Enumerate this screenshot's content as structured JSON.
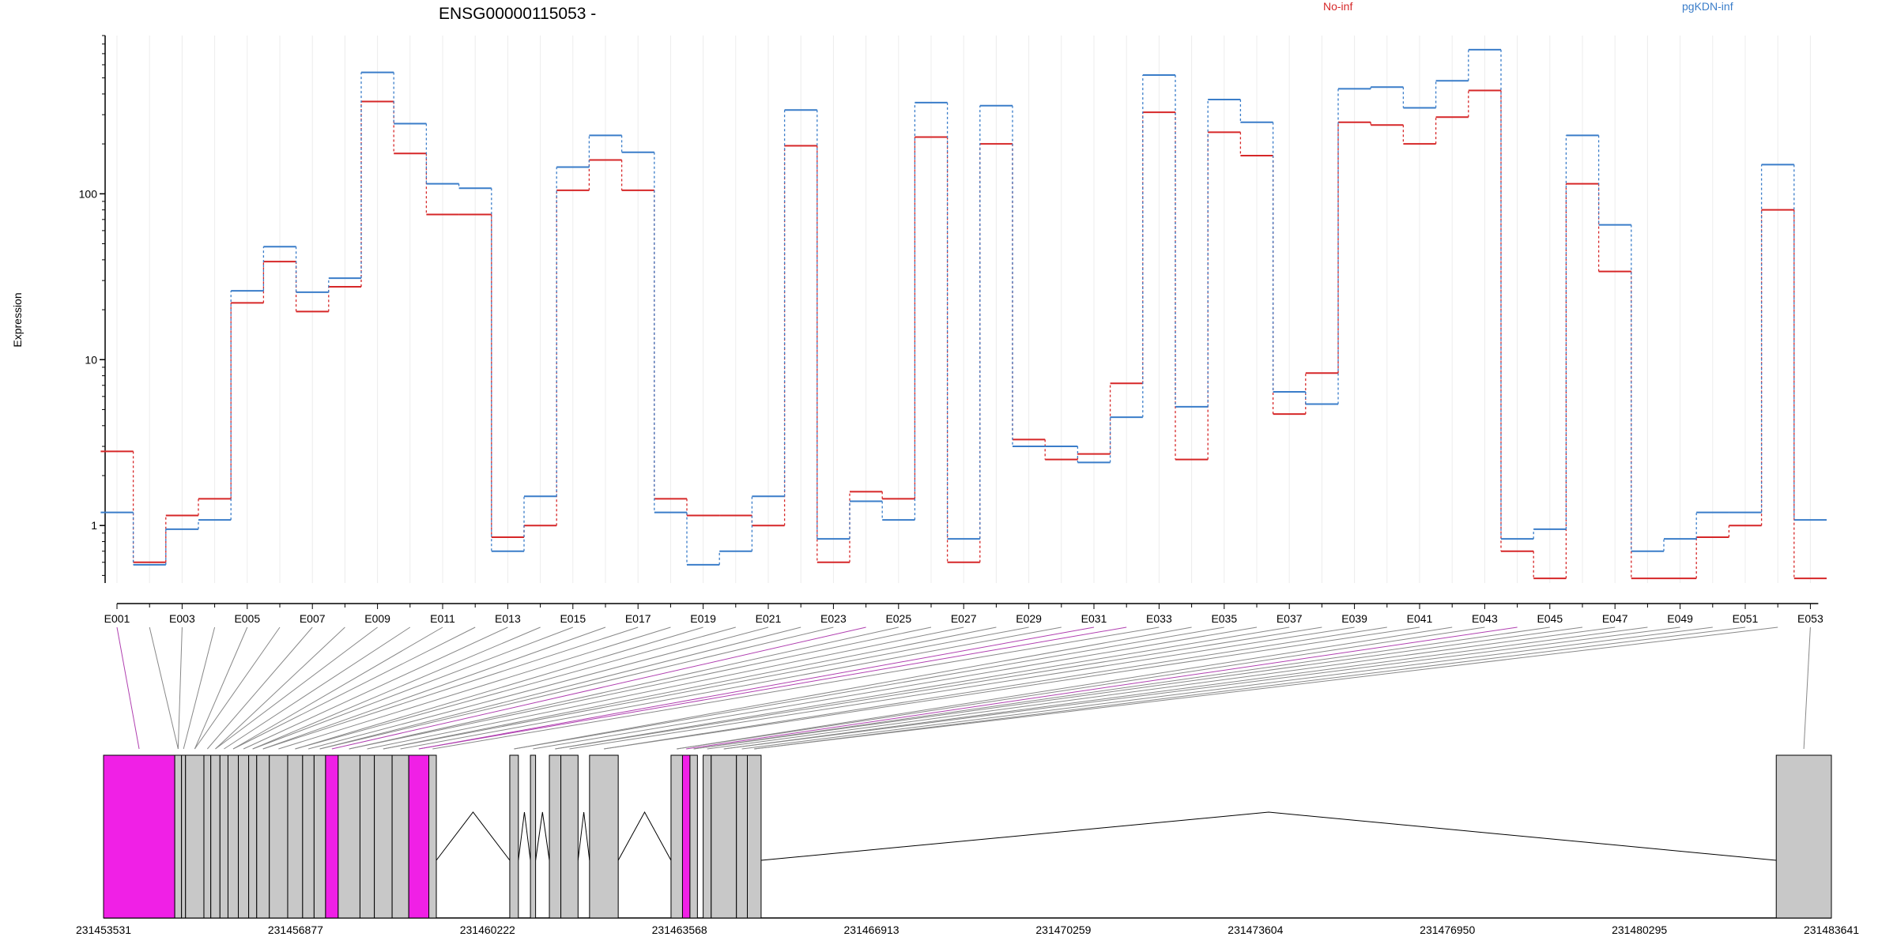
{
  "chart_data": {
    "type": "line",
    "title": "ENSG00000115053 -",
    "ylabel": "Expression",
    "yscale": "log",
    "ylim": [
      0.45,
      900
    ],
    "yticks": [
      1,
      10,
      100
    ],
    "ytick_labels": [
      "1",
      "10",
      "100"
    ],
    "legend_placement": "top",
    "grid": "vertical",
    "categories": [
      "E001",
      "E002",
      "E003",
      "E004",
      "E005",
      "E006",
      "E007",
      "E008",
      "E009",
      "E010",
      "E011",
      "E012",
      "E013",
      "E014",
      "E015",
      "E016",
      "E017",
      "E018",
      "E019",
      "E020",
      "E021",
      "E022",
      "E023",
      "E024",
      "E025",
      "E026",
      "E027",
      "E028",
      "E029",
      "E030",
      "E031",
      "E032",
      "E033",
      "E034",
      "E035",
      "E036",
      "E037",
      "E038",
      "E039",
      "E040",
      "E041",
      "E042",
      "E043",
      "E044",
      "E045",
      "E046",
      "E047",
      "E048",
      "E049",
      "E050",
      "E051",
      "E052",
      "E053"
    ],
    "tick_labels": [
      "E001",
      "E003",
      "E005",
      "E007",
      "E009",
      "E011",
      "E013",
      "E015",
      "E017",
      "E019",
      "E021",
      "E023",
      "E025",
      "E027",
      "E029",
      "E031",
      "E033",
      "E035",
      "E037",
      "E039",
      "E041",
      "E043",
      "E045",
      "E047",
      "E049",
      "E051",
      "E053"
    ],
    "series": [
      {
        "name": "No-inf",
        "color": "#d62728",
        "values": [
          2.8,
          0.6,
          1.15,
          1.45,
          22,
          39,
          19.5,
          27.5,
          360,
          175,
          75,
          75,
          0.85,
          1.0,
          105,
          160,
          105,
          1.45,
          1.15,
          1.15,
          1.0,
          195,
          0.6,
          1.6,
          1.45,
          220,
          0.6,
          200,
          3.3,
          2.5,
          2.7,
          7.2,
          310,
          2.5,
          235,
          170,
          4.7,
          8.3,
          270,
          260,
          200,
          290,
          420,
          0.7,
          0.48,
          115,
          34,
          0.48,
          0.48,
          0.85,
          1.0,
          80,
          0.48
        ]
      },
      {
        "name": "pgKDN-inf",
        "color": "#3a7dc9",
        "values": [
          1.2,
          0.58,
          0.95,
          1.08,
          26,
          48,
          25.5,
          31,
          540,
          265,
          115,
          108,
          0.7,
          1.5,
          145,
          225,
          178,
          1.2,
          0.58,
          0.7,
          1.5,
          320,
          0.83,
          1.4,
          1.08,
          355,
          0.83,
          340,
          3.0,
          3.0,
          2.4,
          4.5,
          520,
          5.2,
          370,
          270,
          6.4,
          5.4,
          430,
          440,
          330,
          480,
          740,
          0.83,
          0.95,
          225,
          65,
          0.7,
          0.83,
          1.2,
          1.2,
          150,
          1.08
        ]
      }
    ],
    "exon_track": {
      "coordinate_labels": [
        "231453531",
        "231456877",
        "231460222",
        "231463568",
        "231466913",
        "231470259",
        "231473604",
        "231476950",
        "231480295",
        "231483641"
      ],
      "coord_range": [
        231453531,
        231483641
      ],
      "highlight_color": "#f020e6",
      "exon_color": "#c8c8c8",
      "exons": [
        {
          "start": 231453531,
          "end": 231454772,
          "highlight": true
        },
        {
          "start": 231454772,
          "end": 231454890,
          "highlight": false
        },
        {
          "start": 231454890,
          "end": 231454960,
          "highlight": false
        },
        {
          "start": 231454960,
          "end": 231455280,
          "highlight": false
        },
        {
          "start": 231455280,
          "end": 231455400,
          "highlight": false
        },
        {
          "start": 231455400,
          "end": 231455560,
          "highlight": false
        },
        {
          "start": 231455560,
          "end": 231455700,
          "highlight": false
        },
        {
          "start": 231455700,
          "end": 231455880,
          "highlight": false
        },
        {
          "start": 231455880,
          "end": 231456060,
          "highlight": false
        },
        {
          "start": 231456060,
          "end": 231456200,
          "highlight": false
        },
        {
          "start": 231456200,
          "end": 231456420,
          "highlight": false
        },
        {
          "start": 231456420,
          "end": 231456740,
          "highlight": false
        },
        {
          "start": 231456740,
          "end": 231457000,
          "highlight": false
        },
        {
          "start": 231457000,
          "end": 231457200,
          "highlight": false
        },
        {
          "start": 231457200,
          "end": 231457400,
          "highlight": false
        },
        {
          "start": 231457400,
          "end": 231457620,
          "highlight": true
        },
        {
          "start": 231457620,
          "end": 231458000,
          "highlight": false
        },
        {
          "start": 231458000,
          "end": 231458250,
          "highlight": false
        },
        {
          "start": 231458250,
          "end": 231458560,
          "highlight": false
        },
        {
          "start": 231458560,
          "end": 231458850,
          "highlight": false
        },
        {
          "start": 231458850,
          "end": 231459200,
          "highlight": true
        },
        {
          "start": 231459200,
          "end": 231459330,
          "highlight": false
        },
        {
          "start": 231460610,
          "end": 231460760,
          "highlight": false
        },
        {
          "start": 231460970,
          "end": 231461060,
          "highlight": false
        },
        {
          "start": 231461300,
          "end": 231461500,
          "highlight": false
        },
        {
          "start": 231461500,
          "end": 231461800,
          "highlight": false
        },
        {
          "start": 231462000,
          "end": 231462500,
          "highlight": false
        },
        {
          "start": 231463420,
          "end": 231463620,
          "highlight": false
        },
        {
          "start": 231463620,
          "end": 231463750,
          "highlight": true
        },
        {
          "start": 231463750,
          "end": 231463880,
          "highlight": false
        },
        {
          "start": 231463980,
          "end": 231464120,
          "highlight": false
        },
        {
          "start": 231464120,
          "end": 231464560,
          "highlight": false
        },
        {
          "start": 231464560,
          "end": 231464750,
          "highlight": false
        },
        {
          "start": 231464750,
          "end": 231464990,
          "highlight": false
        },
        {
          "start": 231482680,
          "end": 231483641,
          "highlight": false
        }
      ]
    }
  }
}
